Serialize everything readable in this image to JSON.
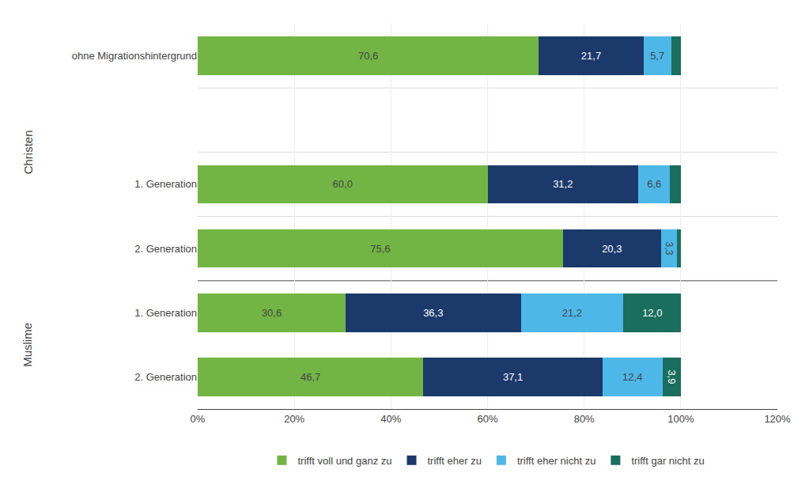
{
  "chart_data": {
    "type": "bar",
    "orientation": "horizontal",
    "stacked": true,
    "data_labels": true,
    "grid": true,
    "legend": "bottom",
    "categories": [
      "ohne Migrationshintergrund",
      null,
      "1. Generation",
      "2. Generation",
      "1. Generation",
      "2. Generation"
    ],
    "series": [
      {
        "name": "trifft voll und ganz zu",
        "color": "#72b544",
        "values": [
          70.6,
          0,
          60.0,
          75.6,
          30.6,
          46.7
        ],
        "value_labels": [
          "70,6",
          null,
          "60,0",
          "75,6",
          "30,6",
          "46,7"
        ]
      },
      {
        "name": "trifft eher zu",
        "color": "#1b3a6b",
        "values": [
          21.7,
          0,
          31.2,
          20.3,
          36.3,
          37.1
        ],
        "value_labels": [
          "21,7",
          null,
          "31,2",
          "20,3",
          "36,3",
          "37,1"
        ]
      },
      {
        "name": "trifft eher nicht zu",
        "color": "#4db8e8",
        "values": [
          5.7,
          0,
          6.6,
          3.3,
          21.2,
          12.4
        ],
        "value_labels": [
          "5,7",
          null,
          "6,6",
          "3,3",
          "21,2",
          "12,4"
        ]
      },
      {
        "name": "trifft gar nicht zu",
        "color": "#1a6e5e",
        "values": [
          2.0,
          0,
          2.2,
          0.8,
          12.0,
          3.9
        ],
        "value_labels": [
          null,
          null,
          null,
          null,
          "12,0",
          "3,9"
        ]
      }
    ],
    "annotations": [
      "Christen",
      "Muslime"
    ],
    "xlim": [
      0,
      120
    ],
    "xticks": [
      {
        "value": 0,
        "label": "0%"
      },
      {
        "value": 20,
        "label": "20%"
      },
      {
        "value": 40,
        "label": "40%"
      },
      {
        "value": 60,
        "label": "60%"
      },
      {
        "value": 80,
        "label": "80%"
      },
      {
        "value": 100,
        "label": "100%"
      },
      {
        "value": 120,
        "label": "120%"
      }
    ]
  }
}
